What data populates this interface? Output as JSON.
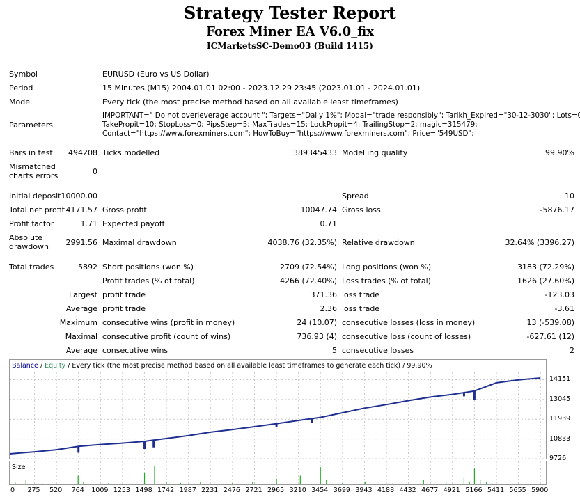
{
  "header": {
    "title": "Strategy Tester Report",
    "ea_name": "Forex Miner EA V6.0_fix",
    "server": "ICMarketsSC-Demo03 (Build 1415)"
  },
  "info": {
    "symbol_label": "Symbol",
    "symbol": "EURUSD (Euro vs US Dollar)",
    "period_label": "Period",
    "period": "15 Minutes (M15) 2004.01.01 02:00 - 2023.12.29 23:45 (2023.01.01 - 2024.01.01)",
    "model_label": "Model",
    "model": "Every tick (the most precise method based on all available least timeframes)",
    "parameters_label": "Parameters",
    "parameters_line1": "IMPORTANT=\" Do not overleverage account \"; Targets=\"Daily 1%\"; Modal=\"trade responsibly\"; Tarikh_Expired=\"30-12-3030\"; Lots=0.01;",
    "parameters_line2": "TakePropit=10; StopLoss=0; PipsStep=5; MaxTrades=15; LockPropit=4; TrailingStop=2; magic=315479;",
    "parameters_line3": "Contact=\"https://www.forexminers.com\"; HowToBuy=\"https://www.forexminers.com\"; Price=\"549USD\";"
  },
  "stats": {
    "bars_label": "Bars in test",
    "bars": "494208",
    "ticks_label": "Ticks modelled",
    "ticks": "389345433",
    "quality_label": "Modelling quality",
    "quality": "99.90%",
    "mismatch_label1": "Mismatched",
    "mismatch_label2": "charts errors",
    "mismatch": "0",
    "deposit_label": "Initial deposit",
    "deposit": "10000.00",
    "spread_label": "Spread",
    "spread": "10",
    "net_label": "Total net profit",
    "net": "4171.57",
    "gross_profit_label": "Gross profit",
    "gross_profit": "10047.74",
    "gross_loss_label": "Gross loss",
    "gross_loss": "-5876.17",
    "pf_label": "Profit factor",
    "pf": "1.71",
    "ep_label": "Expected payoff",
    "ep": "0.71",
    "abs_dd_label1": "Absolute",
    "abs_dd_label2": "drawdown",
    "abs_dd": "2991.56",
    "max_dd_label": "Maximal drawdown",
    "max_dd": "4038.76 (32.35%)",
    "rel_dd_label": "Relative drawdown",
    "rel_dd": "32.64% (3396.27)",
    "trades_label": "Total trades",
    "trades": "5892",
    "short_label": "Short positions (won %)",
    "short": "2709 (72.54%)",
    "long_label": "Long positions (won %)",
    "long": "3183 (72.29%)",
    "profit_trades_label": "Profit trades (% of total)",
    "profit_trades": "4266 (72.40%)",
    "loss_trades_label": "Loss trades (% of total)",
    "loss_trades": "1626 (27.60%)",
    "largest_label": "Largest",
    "largest_profit_label": "profit trade",
    "largest_profit": "371.36",
    "largest_loss_label": "loss trade",
    "largest_loss": "-123.03",
    "average_label": "Average",
    "average_profit_label": "profit trade",
    "average_profit": "2.36",
    "average_loss_label": "loss trade",
    "average_loss": "-3.61",
    "maximum_label": "Maximum",
    "max_cons_wins_label": "consecutive wins (profit in money)",
    "max_cons_wins": "24 (10.07)",
    "max_cons_losses_label": "consecutive losses (loss in money)",
    "max_cons_losses": "13 (-539.08)",
    "maximal_label": "Maximal",
    "maximal_profit_label": "consecutive profit (count of wins)",
    "maximal_profit": "736.93 (4)",
    "maximal_loss_label": "consecutive loss (count of losses)",
    "maximal_loss": "-627.61 (12)",
    "average2_label": "Average",
    "avg_cons_wins_label": "consecutive wins",
    "avg_cons_wins": "5",
    "avg_cons_losses_label": "consecutive losses",
    "avg_cons_losses": "2"
  },
  "chart_legend": {
    "balance": "Balance",
    "sep1": " / ",
    "equity": "Equity",
    "rest": " / Every tick (the most precise method based on all available least timeframes to generate each tick) / 99.90%"
  },
  "size_label": "Size",
  "colors": {
    "balance": "#1f2f8f",
    "equity": "#22aa22",
    "legend_balance": "#00008b",
    "legend_equity": "#2e8b57"
  },
  "chart_data": {
    "type": "line",
    "y_ticks": [
      9726,
      10833,
      11939,
      13045,
      14151
    ],
    "x_ticks": [
      0,
      275,
      520,
      764,
      1009,
      1253,
      1498,
      1742,
      1987,
      2231,
      2476,
      2721,
      2965,
      3210,
      3454,
      3699,
      3943,
      4188,
      4432,
      4677,
      4921,
      5166,
      5411,
      5655,
      5900
    ],
    "ylim": [
      9726,
      14560
    ],
    "xlim": [
      0,
      5960
    ],
    "series": [
      {
        "name": "Balance",
        "x": [
          0,
          275,
          520,
          764,
          1009,
          1253,
          1498,
          1742,
          1987,
          2231,
          2476,
          2721,
          2965,
          3210,
          3454,
          3699,
          3943,
          4188,
          4432,
          4677,
          4921,
          5166,
          5411,
          5655,
          5900
        ],
        "y": [
          10000,
          10110,
          10230,
          10420,
          10520,
          10600,
          10700,
          10860,
          11020,
          11210,
          11360,
          11520,
          11690,
          11870,
          12040,
          12300,
          12560,
          12760,
          12980,
          13180,
          13330,
          13520,
          13980,
          14140,
          14250
        ]
      }
    ],
    "dips": [
      {
        "x": 764,
        "y": 10420,
        "low": 10060
      },
      {
        "x": 1498,
        "y": 10700,
        "low": 10270
      },
      {
        "x": 1600,
        "y": 10760,
        "low": 10360
      },
      {
        "x": 2965,
        "y": 11690,
        "low": 11520
      },
      {
        "x": 3360,
        "y": 12000,
        "low": 11720
      },
      {
        "x": 5050,
        "y": 13420,
        "low": 13220
      },
      {
        "x": 5166,
        "y": 13520,
        "low": 13020
      }
    ],
    "size_bars": [
      {
        "x": 60,
        "v": 2
      },
      {
        "x": 180,
        "v": 3
      },
      {
        "x": 360,
        "v": 1
      },
      {
        "x": 760,
        "v": 6
      },
      {
        "x": 820,
        "v": 2
      },
      {
        "x": 1100,
        "v": 1
      },
      {
        "x": 1498,
        "v": 8
      },
      {
        "x": 1610,
        "v": 13
      },
      {
        "x": 1742,
        "v": 2
      },
      {
        "x": 1900,
        "v": 1
      },
      {
        "x": 2120,
        "v": 2
      },
      {
        "x": 2476,
        "v": 1
      },
      {
        "x": 2700,
        "v": 2
      },
      {
        "x": 2965,
        "v": 4
      },
      {
        "x": 3230,
        "v": 6
      },
      {
        "x": 3454,
        "v": 12
      },
      {
        "x": 3520,
        "v": 3
      },
      {
        "x": 3700,
        "v": 1
      },
      {
        "x": 3950,
        "v": 2
      },
      {
        "x": 4260,
        "v": 1
      },
      {
        "x": 4600,
        "v": 3
      },
      {
        "x": 4850,
        "v": 2
      },
      {
        "x": 5050,
        "v": 5
      },
      {
        "x": 5110,
        "v": 2
      },
      {
        "x": 5166,
        "v": 11
      },
      {
        "x": 5230,
        "v": 3
      },
      {
        "x": 5300,
        "v": 2
      },
      {
        "x": 5360,
        "v": 1
      }
    ],
    "size_ylim": [
      0,
      14
    ]
  }
}
